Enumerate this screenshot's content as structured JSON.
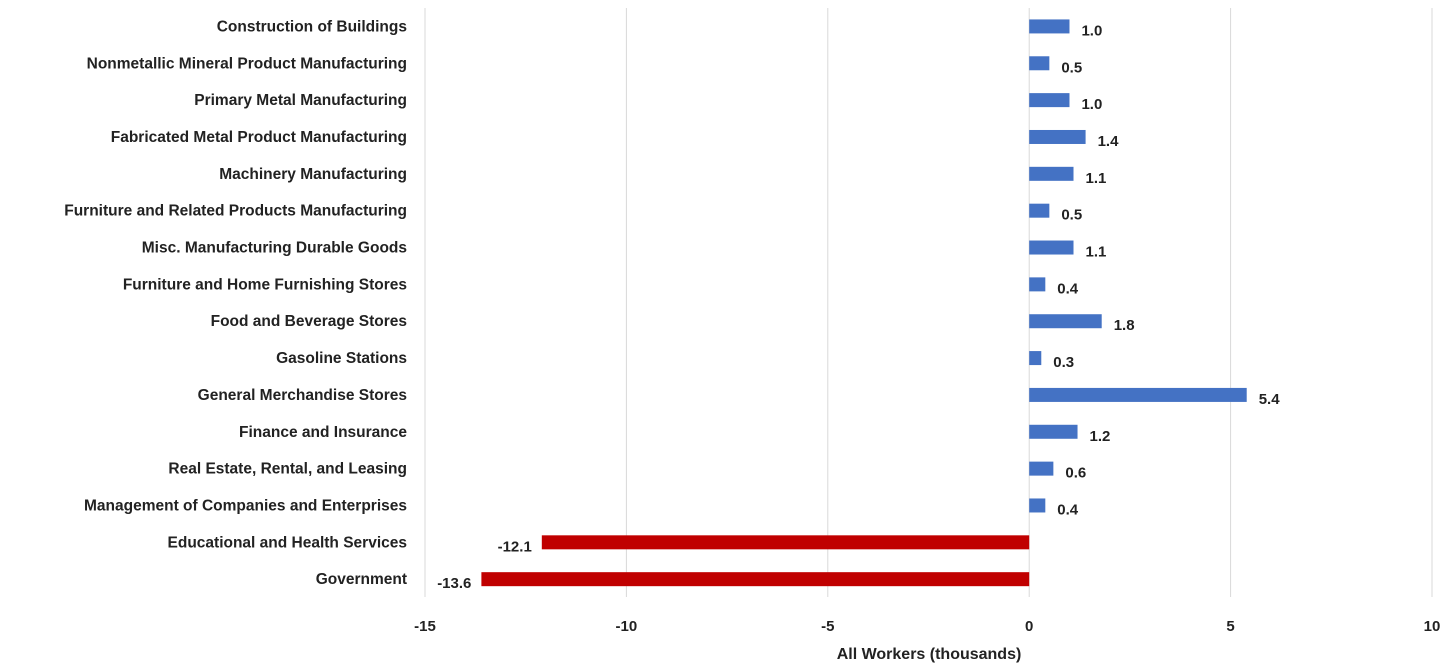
{
  "chart_data": {
    "type": "bar",
    "orientation": "horizontal",
    "title": "",
    "xlabel": "All Workers (thousands)",
    "ylabel": "",
    "xlim": [
      -15,
      10
    ],
    "xticks": [
      -15,
      -10,
      -5,
      0,
      5,
      10
    ],
    "grid": "vertical",
    "legend": "none",
    "colors": {
      "positive": "#4472C4",
      "negative": "#C00000",
      "grid": "#D9D9D9"
    },
    "categories": [
      "Construction of Buildings",
      "Nonmetallic Mineral Product Manufacturing",
      "Primary Metal Manufacturing",
      "Fabricated Metal Product Manufacturing",
      "Machinery Manufacturing",
      "Furniture and Related Products Manufacturing",
      "Misc. Manufacturing Durable Goods",
      "Furniture and Home Furnishing Stores",
      "Food and Beverage Stores",
      "Gasoline Stations",
      "General Merchandise Stores",
      "Finance and Insurance",
      "Real Estate, Rental, and Leasing",
      "Management of Companies and Enterprises",
      "Educational and Health Services",
      "Government"
    ],
    "values": [
      1.0,
      0.5,
      1.0,
      1.4,
      1.1,
      0.5,
      1.1,
      0.4,
      1.8,
      0.3,
      5.4,
      1.2,
      0.6,
      0.4,
      -12.1,
      -13.6
    ],
    "value_labels": [
      "1.0",
      "0.5",
      "1.0",
      "1.4",
      "1.1",
      "0.5",
      "1.1",
      "0.4",
      "1.8",
      "0.3",
      "5.4",
      "1.2",
      "0.6",
      "0.4",
      "-12.1",
      "-13.6"
    ]
  }
}
